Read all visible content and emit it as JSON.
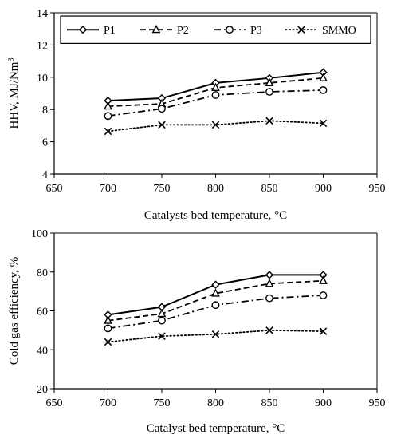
{
  "chart_data": [
    {
      "type": "line",
      "title": "",
      "xlabel": "Catalysts bed temperature, °C",
      "ylabel": "HHV, MJ/Nm",
      "ylabel_superscript": "3",
      "xlim": [
        650,
        950
      ],
      "ylim": [
        4,
        14
      ],
      "xticks": [
        650,
        700,
        750,
        800,
        850,
        900,
        950
      ],
      "yticks": [
        4,
        6,
        8,
        10,
        12,
        14
      ],
      "grid": false,
      "legend": "top",
      "x": [
        700,
        750,
        800,
        850,
        900
      ],
      "series": [
        {
          "name": "P1",
          "values": [
            8.55,
            8.7,
            9.65,
            9.95,
            10.3
          ],
          "marker": "diamond",
          "line": "solid"
        },
        {
          "name": "P2",
          "values": [
            8.2,
            8.35,
            9.35,
            9.65,
            9.95
          ],
          "marker": "triangle",
          "line": "dashed"
        },
        {
          "name": "P3",
          "values": [
            7.6,
            8.05,
            8.9,
            9.1,
            9.2
          ],
          "marker": "circle",
          "line": "dashdot"
        },
        {
          "name": "SMMO",
          "values": [
            6.65,
            7.05,
            7.05,
            7.3,
            7.15
          ],
          "marker": "x",
          "line": "dotted"
        }
      ]
    },
    {
      "type": "line",
      "title": "",
      "xlabel": "Catalyst bed temperature, °C",
      "ylabel": "Cold gas efficiency, %",
      "xlim": [
        650,
        950
      ],
      "ylim": [
        20,
        100
      ],
      "xticks": [
        650,
        700,
        750,
        800,
        850,
        900,
        950
      ],
      "yticks": [
        20,
        40,
        60,
        80,
        100
      ],
      "grid": false,
      "legend": "none",
      "x": [
        700,
        750,
        800,
        850,
        900
      ],
      "series": [
        {
          "name": "P1",
          "values": [
            58,
            62,
            73.5,
            78.5,
            78.5
          ],
          "marker": "diamond",
          "line": "solid"
        },
        {
          "name": "P2",
          "values": [
            55,
            58.5,
            69,
            74,
            75.5
          ],
          "marker": "triangle",
          "line": "dashed"
        },
        {
          "name": "P3",
          "values": [
            51,
            55,
            63,
            66.5,
            68
          ],
          "marker": "circle",
          "line": "dashdot"
        },
        {
          "name": "SMMO",
          "values": [
            44,
            47,
            48,
            50,
            49.5
          ],
          "marker": "x",
          "line": "dotted"
        }
      ]
    }
  ]
}
